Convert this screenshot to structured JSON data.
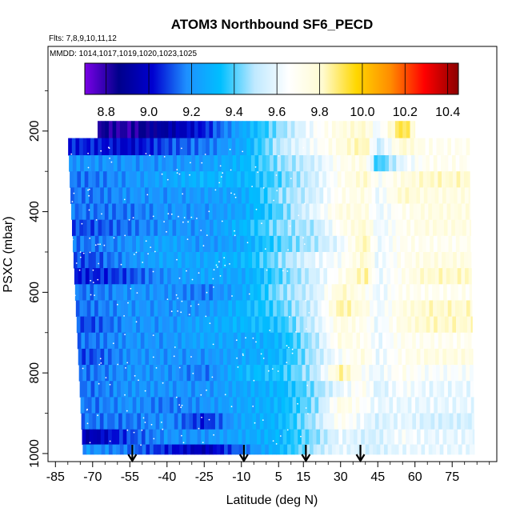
{
  "chart_data": {
    "type": "heatmap",
    "title": "ATOM3 Northbound SF6_PECD",
    "flights_note": "Flts: 7,8,9,10,11,12",
    "dates_note": "MMDD: 1014,1017,1019,1020,1023,1025",
    "xlabel": "Latitude (deg N)",
    "ylabel": "PSXC (mbar)",
    "xlim": [
      -88,
      93
    ],
    "ylim": [
      1020,
      -10
    ],
    "x_ticks": [
      -85,
      -70,
      -55,
      -40,
      -25,
      -10,
      5,
      15,
      30,
      45,
      60,
      75
    ],
    "y_ticks": [
      200,
      400,
      600,
      800,
      1000
    ],
    "colorbar": {
      "min": 8.7,
      "max": 10.45,
      "ticks": [
        8.8,
        9.0,
        9.2,
        9.4,
        9.6,
        9.8,
        10.0,
        10.2,
        10.4
      ],
      "colors": [
        "#7a00e6",
        "#00008b",
        "#0000d0",
        "#1e90ff",
        "#00bfff",
        "#bfe9ff",
        "#ffffff",
        "#fffbd0",
        "#ffd700",
        "#ff8c00",
        "#ff0000",
        "#8b0000"
      ]
    },
    "arrow_latitudes": [
      -54,
      -9,
      16,
      38
    ],
    "layers": [
      {
        "p": 195,
        "stops": [
          [
            -70,
            8.85
          ],
          [
            -55,
            8.8
          ],
          [
            -40,
            8.92
          ],
          [
            -25,
            9.05
          ],
          [
            -10,
            9.25
          ],
          [
            5,
            9.45
          ],
          [
            20,
            9.65
          ],
          [
            30,
            9.75
          ],
          [
            40,
            9.8
          ],
          [
            45,
            9.6
          ],
          [
            55,
            9.95
          ],
          [
            65,
            9.6
          ]
        ]
      },
      {
        "p": 240,
        "stops": [
          [
            -70,
            9.05
          ],
          [
            -55,
            9.0
          ],
          [
            -40,
            9.1
          ],
          [
            -25,
            9.15
          ],
          [
            -10,
            9.25
          ],
          [
            5,
            9.5
          ],
          [
            20,
            9.65
          ],
          [
            30,
            9.75
          ],
          [
            40,
            9.85
          ],
          [
            45,
            9.5
          ],
          [
            55,
            9.8
          ],
          [
            65,
            9.7
          ]
        ]
      },
      {
        "p": 280,
        "stops": [
          [
            -70,
            9.2
          ],
          [
            -55,
            9.2
          ],
          [
            -40,
            9.2
          ],
          [
            -25,
            9.22
          ],
          [
            -10,
            9.3
          ],
          [
            5,
            9.45
          ],
          [
            20,
            9.55
          ],
          [
            30,
            9.7
          ],
          [
            40,
            9.75
          ],
          [
            45,
            9.35
          ],
          [
            55,
            9.6
          ],
          [
            65,
            9.7
          ]
        ]
      },
      {
        "p": 320,
        "stops": [
          [
            -70,
            9.15
          ],
          [
            -55,
            9.2
          ],
          [
            -40,
            9.25
          ],
          [
            -25,
            9.3
          ],
          [
            -10,
            9.3
          ],
          [
            5,
            9.4
          ],
          [
            20,
            9.55
          ],
          [
            30,
            9.7
          ],
          [
            40,
            9.8
          ],
          [
            45,
            9.65
          ],
          [
            55,
            9.75
          ],
          [
            65,
            9.8
          ]
        ]
      },
      {
        "p": 360,
        "stops": [
          [
            -70,
            9.15
          ],
          [
            -55,
            9.2
          ],
          [
            -40,
            9.2
          ],
          [
            -25,
            9.22
          ],
          [
            -10,
            9.25
          ],
          [
            5,
            9.45
          ],
          [
            20,
            9.55
          ],
          [
            30,
            9.7
          ],
          [
            40,
            9.75
          ],
          [
            45,
            9.6
          ],
          [
            55,
            9.8
          ],
          [
            65,
            9.75
          ]
        ]
      },
      {
        "p": 400,
        "stops": [
          [
            -70,
            9.15
          ],
          [
            -55,
            9.15
          ],
          [
            -40,
            9.2
          ],
          [
            -25,
            9.2
          ],
          [
            -10,
            9.25
          ],
          [
            5,
            9.4
          ],
          [
            20,
            9.6
          ],
          [
            30,
            9.75
          ],
          [
            40,
            9.75
          ],
          [
            45,
            9.6
          ],
          [
            55,
            9.7
          ],
          [
            65,
            9.75
          ]
        ]
      },
      {
        "p": 440,
        "stops": [
          [
            -70,
            9.1
          ],
          [
            -55,
            9.15
          ],
          [
            -40,
            9.2
          ],
          [
            -25,
            9.2
          ],
          [
            -10,
            9.3
          ],
          [
            5,
            9.45
          ],
          [
            20,
            9.5
          ],
          [
            30,
            9.7
          ],
          [
            40,
            9.8
          ],
          [
            45,
            9.6
          ],
          [
            55,
            9.7
          ],
          [
            65,
            9.75
          ]
        ]
      },
      {
        "p": 480,
        "stops": [
          [
            -70,
            9.15
          ],
          [
            -55,
            9.2
          ],
          [
            -40,
            9.25
          ],
          [
            -25,
            9.2
          ],
          [
            -10,
            9.25
          ],
          [
            5,
            9.4
          ],
          [
            20,
            9.5
          ],
          [
            30,
            9.6
          ],
          [
            40,
            9.85
          ],
          [
            45,
            9.6
          ],
          [
            55,
            9.7
          ],
          [
            65,
            9.7
          ]
        ]
      },
      {
        "p": 520,
        "stops": [
          [
            -70,
            9.1
          ],
          [
            -55,
            9.2
          ],
          [
            -40,
            9.25
          ],
          [
            -25,
            9.25
          ],
          [
            -10,
            9.3
          ],
          [
            5,
            9.45
          ],
          [
            20,
            9.6
          ],
          [
            30,
            9.65
          ],
          [
            40,
            9.8
          ],
          [
            45,
            9.6
          ],
          [
            55,
            9.7
          ],
          [
            65,
            9.75
          ]
        ]
      },
      {
        "p": 560,
        "stops": [
          [
            -70,
            9.05
          ],
          [
            -55,
            9.1
          ],
          [
            -40,
            9.2
          ],
          [
            -25,
            9.25
          ],
          [
            -10,
            9.25
          ],
          [
            5,
            9.4
          ],
          [
            20,
            9.55
          ],
          [
            30,
            9.7
          ],
          [
            40,
            9.85
          ],
          [
            45,
            9.6
          ],
          [
            55,
            9.7
          ],
          [
            65,
            9.8
          ]
        ]
      },
      {
        "p": 600,
        "stops": [
          [
            -70,
            9.15
          ],
          [
            -55,
            9.2
          ],
          [
            -40,
            9.2
          ],
          [
            -25,
            9.15
          ],
          [
            -10,
            9.25
          ],
          [
            5,
            9.45
          ],
          [
            20,
            9.55
          ],
          [
            30,
            9.8
          ],
          [
            40,
            9.7
          ],
          [
            45,
            9.6
          ],
          [
            55,
            9.7
          ],
          [
            65,
            9.7
          ]
        ]
      },
      {
        "p": 640,
        "stops": [
          [
            -70,
            9.15
          ],
          [
            -55,
            9.2
          ],
          [
            -40,
            9.2
          ],
          [
            -25,
            9.2
          ],
          [
            -10,
            9.3
          ],
          [
            5,
            9.4
          ],
          [
            20,
            9.55
          ],
          [
            30,
            9.85
          ],
          [
            40,
            9.75
          ],
          [
            45,
            9.6
          ],
          [
            55,
            9.75
          ],
          [
            65,
            9.8
          ]
        ]
      },
      {
        "p": 680,
        "stops": [
          [
            -70,
            9.1
          ],
          [
            -55,
            9.2
          ],
          [
            -40,
            9.2
          ],
          [
            -25,
            9.25
          ],
          [
            -10,
            9.3
          ],
          [
            5,
            9.35
          ],
          [
            20,
            9.55
          ],
          [
            30,
            9.75
          ],
          [
            40,
            9.7
          ],
          [
            45,
            9.6
          ],
          [
            55,
            9.75
          ],
          [
            65,
            9.8
          ]
        ]
      },
      {
        "p": 720,
        "stops": [
          [
            -70,
            9.15
          ],
          [
            -55,
            9.2
          ],
          [
            -40,
            9.2
          ],
          [
            -25,
            9.25
          ],
          [
            -10,
            9.25
          ],
          [
            5,
            9.3
          ],
          [
            20,
            9.5
          ],
          [
            30,
            9.75
          ],
          [
            40,
            9.7
          ],
          [
            45,
            9.6
          ],
          [
            55,
            9.7
          ],
          [
            65,
            9.7
          ]
        ]
      },
      {
        "p": 760,
        "stops": [
          [
            -70,
            9.1
          ],
          [
            -55,
            9.2
          ],
          [
            -40,
            9.2
          ],
          [
            -25,
            9.2
          ],
          [
            -10,
            9.25
          ],
          [
            5,
            9.3
          ],
          [
            20,
            9.5
          ],
          [
            30,
            9.65
          ],
          [
            40,
            9.75
          ],
          [
            45,
            9.6
          ],
          [
            55,
            9.7
          ],
          [
            65,
            9.75
          ]
        ]
      },
      {
        "p": 800,
        "stops": [
          [
            -70,
            9.15
          ],
          [
            -55,
            9.2
          ],
          [
            -40,
            9.2
          ],
          [
            -25,
            9.15
          ],
          [
            -10,
            9.3
          ],
          [
            5,
            9.35
          ],
          [
            20,
            9.5
          ],
          [
            30,
            9.85
          ],
          [
            40,
            9.65
          ],
          [
            45,
            9.6
          ],
          [
            55,
            9.7
          ],
          [
            65,
            9.65
          ]
        ]
      },
      {
        "p": 840,
        "stops": [
          [
            -70,
            9.15
          ],
          [
            -55,
            9.2
          ],
          [
            -40,
            9.2
          ],
          [
            -25,
            9.2
          ],
          [
            -10,
            9.25
          ],
          [
            5,
            9.3
          ],
          [
            20,
            9.45
          ],
          [
            30,
            9.6
          ],
          [
            40,
            9.7
          ],
          [
            45,
            9.55
          ],
          [
            55,
            9.65
          ],
          [
            65,
            9.6
          ]
        ]
      },
      {
        "p": 880,
        "stops": [
          [
            -70,
            9.15
          ],
          [
            -55,
            9.2
          ],
          [
            -40,
            9.15
          ],
          [
            -25,
            9.2
          ],
          [
            -10,
            9.25
          ],
          [
            5,
            9.3
          ],
          [
            20,
            9.45
          ],
          [
            30,
            9.75
          ],
          [
            40,
            9.65
          ],
          [
            45,
            9.6
          ],
          [
            55,
            9.6
          ],
          [
            65,
            9.6
          ]
        ]
      },
      {
        "p": 920,
        "stops": [
          [
            -70,
            9.15
          ],
          [
            -55,
            9.15
          ],
          [
            -40,
            9.2
          ],
          [
            -25,
            9.05
          ],
          [
            -10,
            9.25
          ],
          [
            5,
            9.3
          ],
          [
            20,
            9.5
          ],
          [
            30,
            9.7
          ],
          [
            40,
            9.6
          ],
          [
            45,
            9.55
          ],
          [
            55,
            9.6
          ],
          [
            65,
            9.55
          ]
        ]
      },
      {
        "p": 960,
        "stops": [
          [
            -70,
            8.95
          ],
          [
            -55,
            9.1
          ],
          [
            -40,
            9.2
          ],
          [
            -25,
            9.2
          ],
          [
            -10,
            9.25
          ],
          [
            5,
            9.3
          ],
          [
            20,
            9.45
          ],
          [
            30,
            9.6
          ],
          [
            40,
            9.55
          ],
          [
            45,
            9.55
          ],
          [
            55,
            9.65
          ],
          [
            65,
            9.6
          ]
        ]
      },
      {
        "p": 995,
        "stops": [
          [
            -70,
            9.2
          ],
          [
            -55,
            9.15
          ],
          [
            -40,
            9.05
          ],
          [
            -25,
            8.95
          ],
          [
            -10,
            9.15
          ],
          [
            5,
            9.3
          ],
          [
            20,
            9.5
          ],
          [
            30,
            9.6
          ],
          [
            40,
            9.55
          ],
          [
            45,
            9.55
          ],
          [
            55,
            9.6
          ],
          [
            65,
            9.6
          ]
        ]
      }
    ]
  }
}
